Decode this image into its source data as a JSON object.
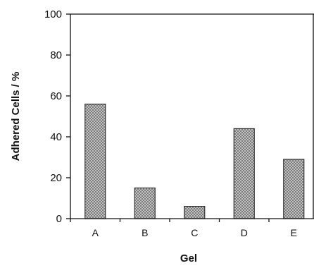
{
  "chart_data": {
    "type": "bar",
    "title": "",
    "xlabel": "Gel",
    "ylabel": "Adhered Cells / %",
    "categories": [
      "A",
      "B",
      "C",
      "D",
      "E"
    ],
    "values": [
      56,
      15,
      6,
      44,
      29
    ],
    "ylim": [
      0,
      100
    ],
    "yticks": [
      "0",
      "20",
      "40",
      "60",
      "80",
      "100"
    ],
    "grid": false,
    "legend": "none",
    "bar_color": "#b8b8b8",
    "bar_pattern": "crosshatch"
  }
}
